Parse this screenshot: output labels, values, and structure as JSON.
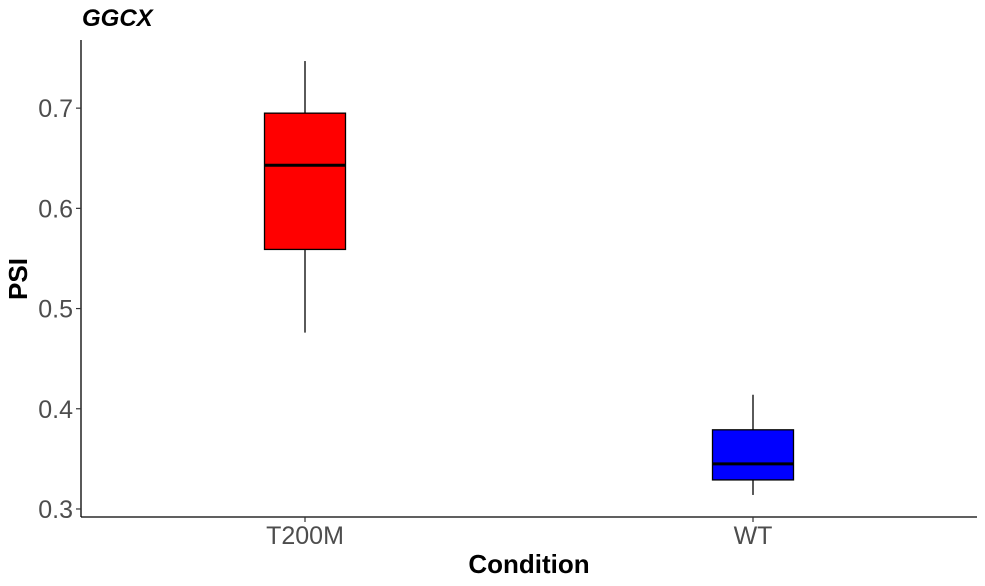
{
  "chart_data": {
    "type": "box",
    "title": "GGCX",
    "xlabel": "Condition",
    "ylabel": "PSI",
    "categories": [
      "T200M",
      "WT"
    ],
    "boxes": [
      {
        "category": "T200M",
        "min": 0.476,
        "q1": 0.559,
        "median": 0.643,
        "q3": 0.695,
        "max": 0.747,
        "color": "#ff0000"
      },
      {
        "category": "WT",
        "min": 0.314,
        "q1": 0.329,
        "median": 0.345,
        "q3": 0.379,
        "max": 0.414,
        "color": "#0000ff"
      }
    ],
    "yticks": [
      "0.3",
      "0.4",
      "0.5",
      "0.6",
      "0.7"
    ],
    "ylim": [
      0.292,
      0.768
    ],
    "grid": false,
    "legend": "none"
  }
}
